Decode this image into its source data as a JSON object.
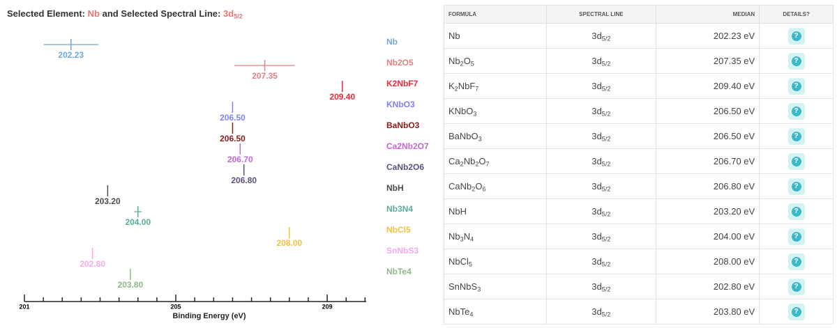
{
  "header": {
    "label_element": "Selected Element:",
    "element": "Nb",
    "label_line": "and Selected Spectral Line:",
    "line": "3d5/2"
  },
  "chart_data": {
    "type": "errorbar",
    "categories": [
      "Nb",
      "Nb2O5",
      "K2NbF7",
      "KNbO3",
      "BaNbO3",
      "Ca2Nb2O7",
      "CaNb2O6",
      "NbH",
      "Nb3N4",
      "NbCl5",
      "SnNbS3",
      "NbTe4"
    ],
    "values": [
      202.23,
      207.35,
      209.4,
      206.5,
      206.5,
      206.7,
      206.8,
      203.2,
      204.0,
      208.0,
      202.8,
      203.8
    ],
    "value_labels": [
      "202.23",
      "207.35",
      "209.40",
      "206.50",
      "206.50",
      "206.70",
      "206.80",
      "203.20",
      "204.00",
      "208.00",
      "202.80",
      "203.80"
    ],
    "errors": [
      0.72,
      0.8,
      0,
      0,
      0,
      0,
      0,
      0,
      0.1,
      0,
      0,
      0
    ],
    "colors": [
      "#6ea8d8",
      "#e08080",
      "#e8293a",
      "#8080f0",
      "#8b1a1a",
      "#c466d6",
      "#5c4e7e",
      "#4a4a4a",
      "#5aab9c",
      "#f0c040",
      "#f6a8ea",
      "#8cba84"
    ],
    "xlabel": "Binding Energy (eV)",
    "xlim": [
      201,
      210.03
    ],
    "xticks": [
      201,
      205,
      209
    ],
    "xminorticks": [
      201.5,
      202,
      202.5,
      203,
      203.5,
      204,
      204.5,
      205.5,
      206,
      206.5,
      207,
      207.5,
      208,
      208.5,
      209.5,
      210
    ],
    "legend": "right"
  },
  "table": {
    "columns": [
      "FORMULA",
      "SPECTRAL LINE",
      "MEDIAN",
      "DETAILS?"
    ],
    "rows": [
      [
        "Nb",
        "3d5/2",
        "202.23 eV"
      ],
      [
        "Nb2O5",
        "3d5/2",
        "207.35 eV"
      ],
      [
        "K2NbF7",
        "3d5/2",
        "209.40 eV"
      ],
      [
        "KNbO3",
        "3d5/2",
        "206.50 eV"
      ],
      [
        "BaNbO3",
        "3d5/2",
        "206.50 eV"
      ],
      [
        "Ca2Nb2O7",
        "3d5/2",
        "206.70 eV"
      ],
      [
        "CaNb2O6",
        "3d5/2",
        "206.80 eV"
      ],
      [
        "NbH",
        "3d5/2",
        "203.20 eV"
      ],
      [
        "Nb3N4",
        "3d5/2",
        "204.00 eV"
      ],
      [
        "NbCl5",
        "3d5/2",
        "208.00 eV"
      ],
      [
        "SnNbS3",
        "3d5/2",
        "202.80 eV"
      ],
      [
        "NbTe4",
        "3d5/2",
        "203.80 eV"
      ]
    ],
    "details_icon": "?"
  }
}
